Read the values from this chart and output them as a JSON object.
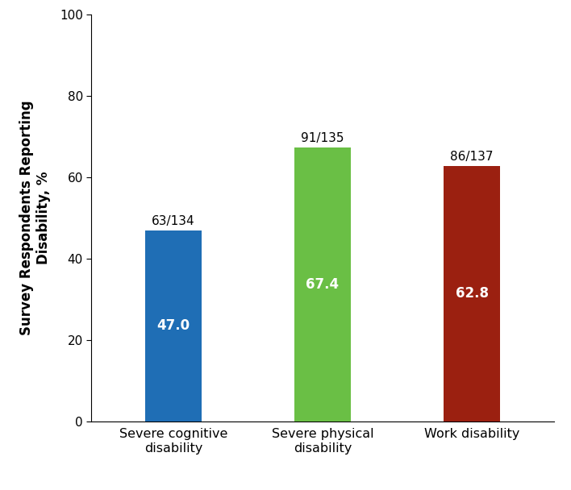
{
  "categories": [
    "Severe cognitive\ndisability",
    "Severe physical\ndisability",
    "Work disability"
  ],
  "values": [
    47.0,
    67.4,
    62.8
  ],
  "bar_colors": [
    "#1f6eb5",
    "#6abf45",
    "#9b2010"
  ],
  "inside_labels": [
    "47.0",
    "67.4",
    "62.8"
  ],
  "above_labels": [
    "63/134",
    "91/135",
    "86/137"
  ],
  "ylabel": "Survey Respondents Reporting\nDisability, %",
  "ylim": [
    0,
    100
  ],
  "yticks": [
    0,
    20,
    40,
    60,
    80,
    100
  ],
  "bar_width": 0.38,
  "inside_label_fontsize": 12,
  "above_label_fontsize": 11,
  "ylabel_fontsize": 12,
  "xtick_fontsize": 11.5,
  "ytick_fontsize": 11,
  "background_color": "#ffffff",
  "figsize": [
    7.08,
    6.08
  ],
  "dpi": 100
}
